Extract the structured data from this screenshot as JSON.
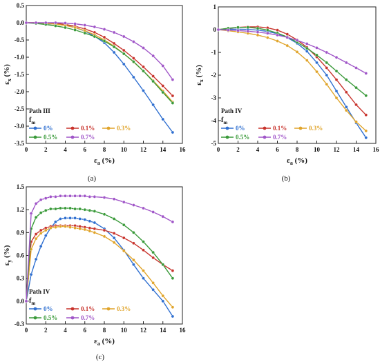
{
  "palette": {
    "0%": "#2f6fd0",
    "0.1%": "#c8332c",
    "0.3%": "#e0a42a",
    "0.5%": "#3a9a3a",
    "0.7%": "#a056c8"
  },
  "chart_data": [
    {
      "id": "a",
      "type": "line",
      "panel_label": "(a)",
      "xlabel": "εa (%)",
      "ylabel": "εx (%)",
      "xlim": [
        0,
        16
      ],
      "ylim": [
        -3.5,
        0.5
      ],
      "xticks": [
        "0",
        "2",
        "4",
        "6",
        "8",
        "10",
        "12",
        "14",
        "16"
      ],
      "yticks": [
        "0.5",
        "0.0",
        "-0.5",
        "-1.0",
        "-1.5",
        "-2.0",
        "-2.5",
        "-3.0",
        "-3.5"
      ],
      "annotation": [
        "Path III",
        "fm"
      ],
      "legend_placement": "bottom-left",
      "series": [
        {
          "name": "0%",
          "x": [
            0,
            1,
            2,
            3,
            4,
            5,
            6,
            7,
            8,
            9,
            10,
            11,
            12,
            13,
            14,
            15
          ],
          "y": [
            0,
            0,
            -0.02,
            -0.04,
            -0.07,
            -0.14,
            -0.24,
            -0.39,
            -0.58,
            -0.86,
            -1.2,
            -1.58,
            -1.97,
            -2.38,
            -2.8,
            -3.18
          ]
        },
        {
          "name": "0.1%",
          "x": [
            0,
            1,
            2,
            3,
            4,
            5,
            6,
            7,
            8,
            9,
            10,
            11,
            12,
            13,
            14,
            15
          ],
          "y": [
            0,
            0,
            -0.01,
            -0.02,
            -0.05,
            -0.1,
            -0.18,
            -0.28,
            -0.42,
            -0.6,
            -0.8,
            -1.03,
            -1.28,
            -1.55,
            -1.83,
            -2.12
          ]
        },
        {
          "name": "0.3%",
          "x": [
            0,
            1,
            2,
            3,
            4,
            5,
            6,
            7,
            8,
            9,
            10,
            11,
            12,
            13,
            14,
            15
          ],
          "y": [
            0,
            0,
            -0.02,
            -0.04,
            -0.08,
            -0.14,
            -0.23,
            -0.35,
            -0.5,
            -0.68,
            -0.9,
            -1.14,
            -1.4,
            -1.68,
            -1.98,
            -2.3
          ]
        },
        {
          "name": "0.5%",
          "x": [
            0,
            1,
            2,
            3,
            4,
            5,
            6,
            7,
            8,
            9,
            10,
            11,
            12,
            13,
            14,
            15
          ],
          "y": [
            0,
            -0.02,
            -0.05,
            -0.09,
            -0.14,
            -0.21,
            -0.3,
            -0.4,
            -0.53,
            -0.7,
            -0.9,
            -1.13,
            -1.4,
            -1.7,
            -2.02,
            -2.33
          ]
        },
        {
          "name": "0.7%",
          "x": [
            0,
            1,
            2,
            3,
            4,
            5,
            6,
            7,
            8,
            9,
            10,
            11,
            12,
            13,
            14,
            15
          ],
          "y": [
            0,
            0,
            0,
            0,
            -0.01,
            -0.03,
            -0.07,
            -0.12,
            -0.19,
            -0.28,
            -0.4,
            -0.55,
            -0.73,
            -0.96,
            -1.25,
            -1.65
          ]
        }
      ]
    },
    {
      "id": "b",
      "type": "line",
      "panel_label": "(b)",
      "xlabel": "εa (%)",
      "ylabel": "εx (%)",
      "xlim": [
        0,
        16
      ],
      "ylim": [
        -5,
        1
      ],
      "xticks": [
        "0",
        "2",
        "4",
        "6",
        "8",
        "10",
        "12",
        "14",
        "16"
      ],
      "yticks": [
        "1",
        "0",
        "-1",
        "-2",
        "-3",
        "-4",
        "-5"
      ],
      "annotation": [
        "Path IV",
        "fm"
      ],
      "legend_placement": "bottom-left",
      "series": [
        {
          "name": "0%",
          "x": [
            0,
            1,
            2,
            3,
            4,
            5,
            6,
            7,
            8,
            9,
            10,
            11,
            12,
            13,
            14,
            15
          ],
          "y": [
            0,
            0.02,
            0.02,
            0.01,
            -0.02,
            -0.08,
            -0.18,
            -0.35,
            -0.6,
            -0.95,
            -1.45,
            -2.0,
            -2.7,
            -3.4,
            -4.1,
            -4.75
          ]
        },
        {
          "name": "0.1%",
          "x": [
            0,
            1,
            2,
            3,
            4,
            5,
            6,
            7,
            8,
            9,
            10,
            11,
            12,
            13,
            14,
            15
          ],
          "y": [
            0,
            0.05,
            0.1,
            0.12,
            0.12,
            0.08,
            -0.02,
            -0.2,
            -0.45,
            -0.78,
            -1.2,
            -1.68,
            -2.2,
            -2.75,
            -3.3,
            -3.75
          ]
        },
        {
          "name": "0.3%",
          "x": [
            0,
            1,
            2,
            3,
            4,
            5,
            6,
            7,
            8,
            9,
            10,
            11,
            12,
            13,
            14,
            15
          ],
          "y": [
            0,
            -0.05,
            -0.1,
            -0.16,
            -0.24,
            -0.35,
            -0.5,
            -0.7,
            -0.98,
            -1.35,
            -1.85,
            -2.4,
            -3.0,
            -3.55,
            -4.05,
            -4.45
          ]
        },
        {
          "name": "0.5%",
          "x": [
            0,
            1,
            2,
            3,
            4,
            5,
            6,
            7,
            8,
            9,
            10,
            11,
            12,
            13,
            14,
            15
          ],
          "y": [
            0,
            0.06,
            0.1,
            0.1,
            0.06,
            -0.02,
            -0.15,
            -0.32,
            -0.55,
            -0.82,
            -1.12,
            -1.45,
            -1.82,
            -2.2,
            -2.55,
            -2.9
          ]
        },
        {
          "name": "0.7%",
          "x": [
            0,
            1,
            2,
            3,
            4,
            5,
            6,
            7,
            8,
            9,
            10,
            11,
            12,
            13,
            14,
            15
          ],
          "y": [
            0,
            -0.02,
            -0.04,
            -0.07,
            -0.11,
            -0.16,
            -0.24,
            -0.34,
            -0.47,
            -0.62,
            -0.8,
            -1.0,
            -1.22,
            -1.45,
            -1.68,
            -1.92
          ]
        }
      ]
    },
    {
      "id": "c",
      "type": "line",
      "panel_label": "(c)",
      "xlabel": "εa (%)",
      "ylabel": "εy (%)",
      "xlim": [
        0,
        16
      ],
      "ylim": [
        -0.3,
        1.5
      ],
      "xticks": [
        "0",
        "2",
        "4",
        "6",
        "8",
        "10",
        "12",
        "14",
        "16"
      ],
      "yticks": [
        "1.5",
        "1.2",
        "0.9",
        "0.6",
        "0.3",
        "0.0",
        "-0.3"
      ],
      "annotation": [
        "Path IV",
        "fm"
      ],
      "legend_placement": "bottom-left",
      "series": [
        {
          "name": "0%",
          "x": [
            0,
            0.5,
            1,
            1.5,
            2,
            2.5,
            3,
            3.5,
            4,
            4.5,
            5,
            5.5,
            6,
            6.5,
            7,
            8,
            9,
            10,
            11,
            12,
            13,
            14,
            15
          ],
          "y": [
            0,
            0.35,
            0.55,
            0.72,
            0.86,
            0.96,
            1.04,
            1.08,
            1.09,
            1.09,
            1.09,
            1.08,
            1.07,
            1.05,
            1.03,
            0.95,
            0.83,
            0.67,
            0.48,
            0.3,
            0.15,
            0.0,
            -0.2
          ]
        },
        {
          "name": "0.1%",
          "x": [
            0,
            0.5,
            1,
            1.5,
            2,
            2.5,
            3,
            3.5,
            4,
            4.5,
            5,
            5.5,
            6,
            6.5,
            7,
            8,
            9,
            10,
            11,
            12,
            13,
            14,
            15
          ],
          "y": [
            0,
            0.78,
            0.88,
            0.93,
            0.96,
            0.98,
            0.99,
            0.99,
            0.99,
            0.99,
            0.99,
            0.98,
            0.97,
            0.96,
            0.95,
            0.93,
            0.89,
            0.83,
            0.76,
            0.67,
            0.57,
            0.48,
            0.4
          ]
        },
        {
          "name": "0.3%",
          "x": [
            0,
            0.5,
            1,
            1.5,
            2,
            2.5,
            3,
            3.5,
            4,
            4.5,
            5,
            5.5,
            6,
            6.5,
            7,
            8,
            9,
            10,
            11,
            12,
            13,
            14,
            15
          ],
          "y": [
            0,
            0.68,
            0.82,
            0.89,
            0.93,
            0.96,
            0.97,
            0.98,
            0.98,
            0.97,
            0.96,
            0.95,
            0.94,
            0.92,
            0.9,
            0.85,
            0.77,
            0.66,
            0.54,
            0.4,
            0.24,
            0.07,
            -0.08
          ]
        },
        {
          "name": "0.5%",
          "x": [
            0,
            0.5,
            1,
            1.5,
            2,
            2.5,
            3,
            3.5,
            4,
            4.5,
            5,
            5.5,
            6,
            6.5,
            7,
            8,
            9,
            10,
            11,
            12,
            13,
            14,
            15
          ],
          "y": [
            0,
            0.95,
            1.1,
            1.16,
            1.19,
            1.21,
            1.21,
            1.22,
            1.22,
            1.22,
            1.21,
            1.21,
            1.2,
            1.19,
            1.18,
            1.14,
            1.08,
            1.0,
            0.9,
            0.78,
            0.64,
            0.48,
            0.3
          ]
        },
        {
          "name": "0.7%",
          "x": [
            0,
            0.5,
            1,
            1.5,
            2,
            2.5,
            3,
            3.5,
            4,
            4.5,
            5,
            5.5,
            6,
            6.5,
            7,
            8,
            9,
            10,
            11,
            12,
            13,
            14,
            15
          ],
          "y": [
            0,
            1.15,
            1.28,
            1.33,
            1.35,
            1.37,
            1.37,
            1.38,
            1.38,
            1.38,
            1.38,
            1.38,
            1.38,
            1.37,
            1.37,
            1.36,
            1.34,
            1.3,
            1.26,
            1.22,
            1.17,
            1.11,
            1.04
          ]
        }
      ]
    }
  ]
}
